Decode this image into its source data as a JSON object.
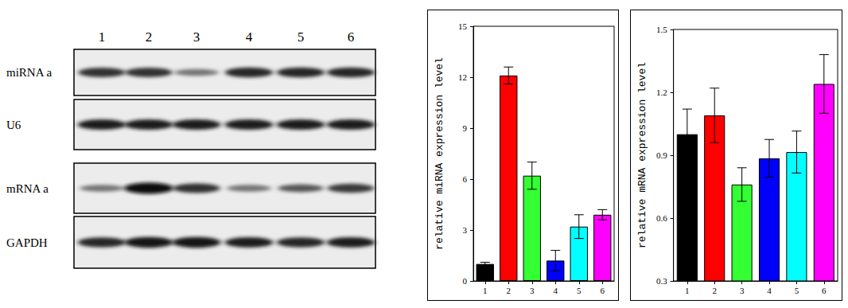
{
  "blot": {
    "lanes": [
      "1",
      "2",
      "3",
      "4",
      "5",
      "6"
    ],
    "panels": [
      {
        "label": "miRNA a",
        "intensity": [
          0.8,
          0.8,
          0.45,
          0.85,
          0.85,
          0.85
        ]
      },
      {
        "label": "U6",
        "intensity": [
          0.9,
          0.9,
          0.9,
          0.9,
          0.9,
          0.9
        ]
      },
      {
        "label": "mRNA a",
        "intensity": [
          0.45,
          1.0,
          0.8,
          0.45,
          0.6,
          0.75
        ]
      },
      {
        "label": "GAPDH",
        "intensity": [
          0.85,
          0.95,
          0.95,
          0.9,
          0.85,
          0.9
        ]
      }
    ]
  },
  "chart_data": [
    {
      "type": "bar",
      "ylabel": "relative miRNA expression level",
      "categories": [
        "1",
        "2",
        "3",
        "4",
        "5",
        "6"
      ],
      "values": [
        1.0,
        12.1,
        6.2,
        1.2,
        3.2,
        3.9
      ],
      "errors": [
        0.1,
        0.5,
        0.8,
        0.6,
        0.7,
        0.3
      ],
      "colors": [
        "#000000",
        "#ff0000",
        "#33ff33",
        "#0000ff",
        "#00ffff",
        "#ff00ff"
      ],
      "ylim": [
        0,
        15
      ],
      "yticks": [
        0,
        3,
        6,
        9,
        12,
        15
      ],
      "grid": false
    },
    {
      "type": "bar",
      "ylabel": "relative mRNA expression level",
      "categories": [
        "1",
        "2",
        "3",
        "4",
        "5",
        "6"
      ],
      "values": [
        1.0,
        1.09,
        0.76,
        0.885,
        0.915,
        1.24
      ],
      "errors": [
        0.12,
        0.13,
        0.08,
        0.09,
        0.1,
        0.14
      ],
      "colors": [
        "#000000",
        "#ff0000",
        "#33ff33",
        "#0000ff",
        "#00ffff",
        "#ff00ff"
      ],
      "ylim": [
        0.3,
        1.5
      ],
      "yticks": [
        0.3,
        0.6,
        0.9,
        1.2,
        1.5
      ],
      "grid": false
    }
  ]
}
